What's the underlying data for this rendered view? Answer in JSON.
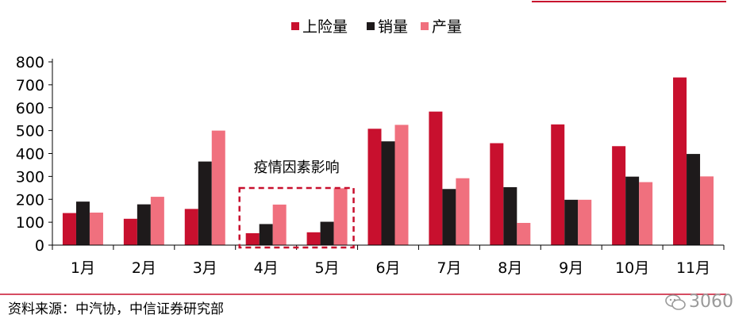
{
  "chart_data": {
    "type": "bar",
    "categories": [
      "1月",
      "2月",
      "3月",
      "4月",
      "5月",
      "6月",
      "7月",
      "8月",
      "9月",
      "10月",
      "11月"
    ],
    "series": [
      {
        "name": "上险量",
        "color": "#c8102e",
        "values": [
          140,
          115,
          158,
          52,
          56,
          508,
          583,
          445,
          527,
          432,
          732
        ]
      },
      {
        "name": "销量",
        "color": "#1e1a1b",
        "values": [
          190,
          178,
          365,
          92,
          102,
          453,
          245,
          253,
          198,
          299,
          398
        ]
      },
      {
        "name": "产量",
        "color": "#f0707e",
        "values": [
          142,
          211,
          500,
          177,
          248,
          525,
          292,
          97,
          198,
          275,
          300
        ]
      }
    ],
    "y_ticks": [
      0,
      100,
      200,
      300,
      400,
      500,
      600,
      700,
      800
    ],
    "ylim": [
      0,
      800
    ],
    "legend_position": "top-center",
    "annotation": {
      "text": "疫情因素影响",
      "categories": [
        "4月",
        "5月"
      ]
    }
  },
  "source_text": "资料来源：中汽协，中信证券研究部",
  "watermark_text": "3060"
}
